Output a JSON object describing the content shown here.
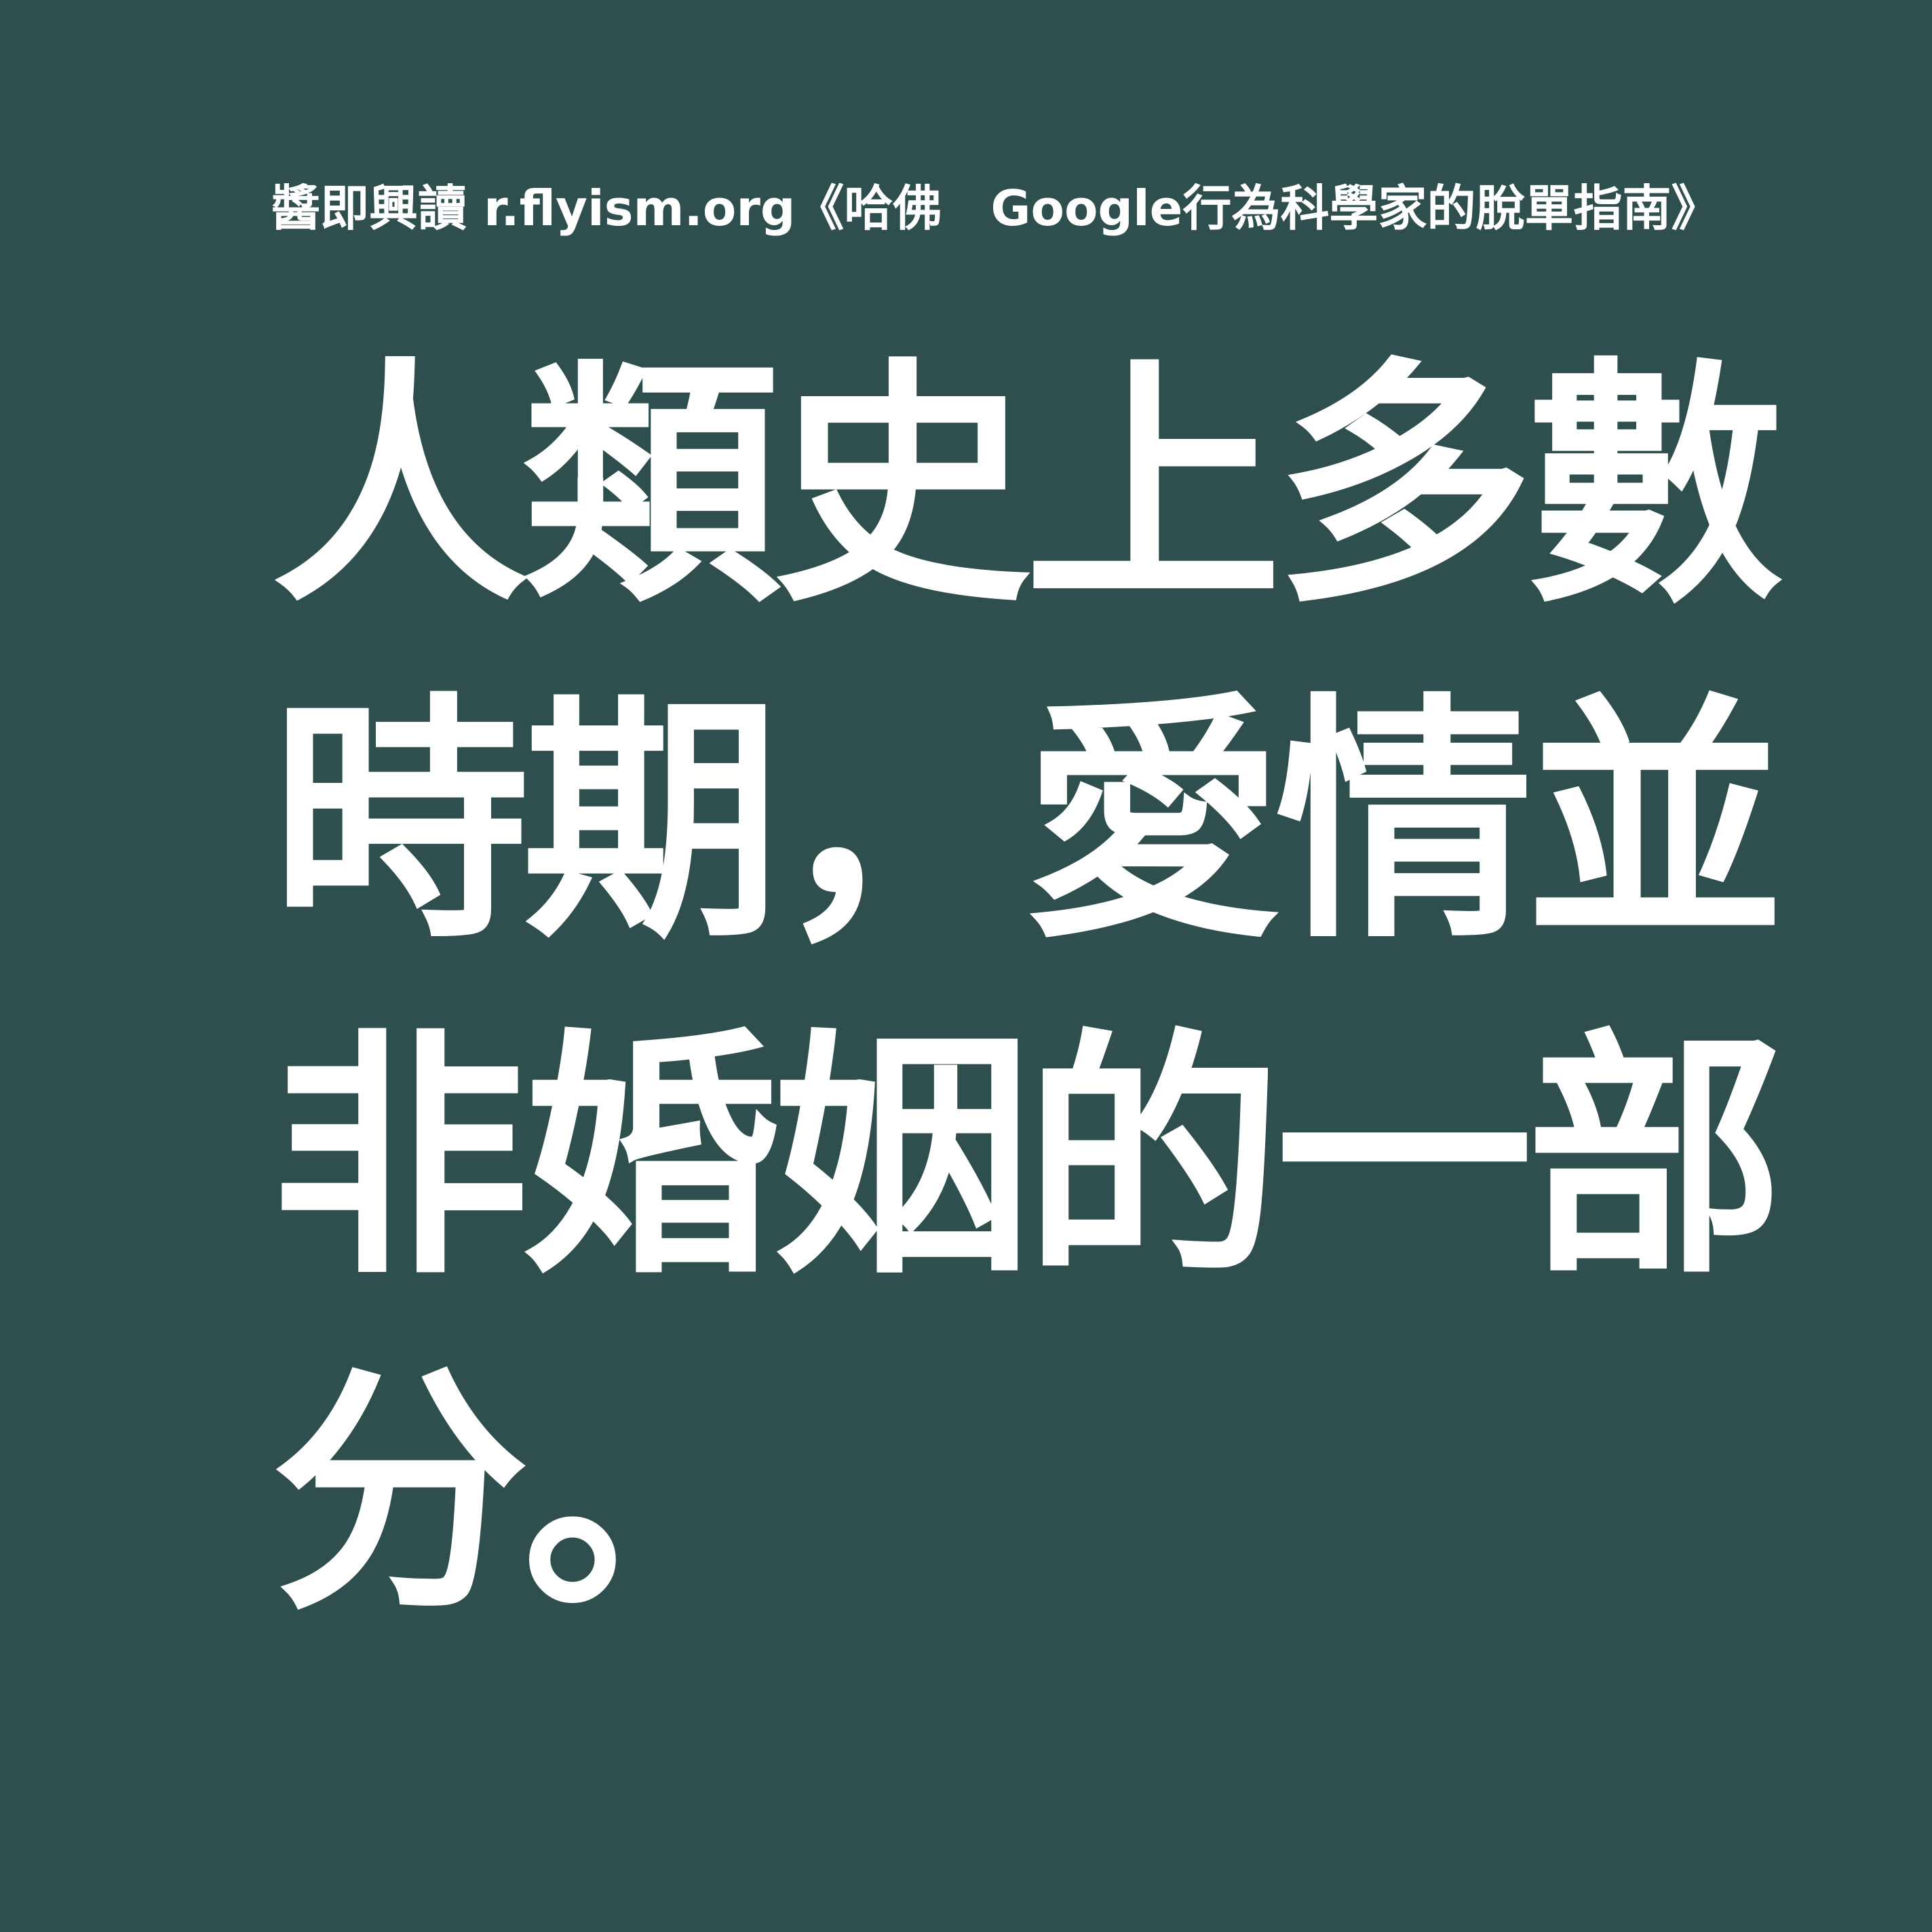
{
  "source_text": "醬即興讀 r.flyism.org《哈佛　Google行為科學家的脫單指南》",
  "quote_lines": [
    "人類史上多數",
    "時期，愛情並",
    "非婚姻的一部",
    "分。"
  ],
  "colors": {
    "background": "#2f4f4f",
    "text": "#ffffff"
  }
}
